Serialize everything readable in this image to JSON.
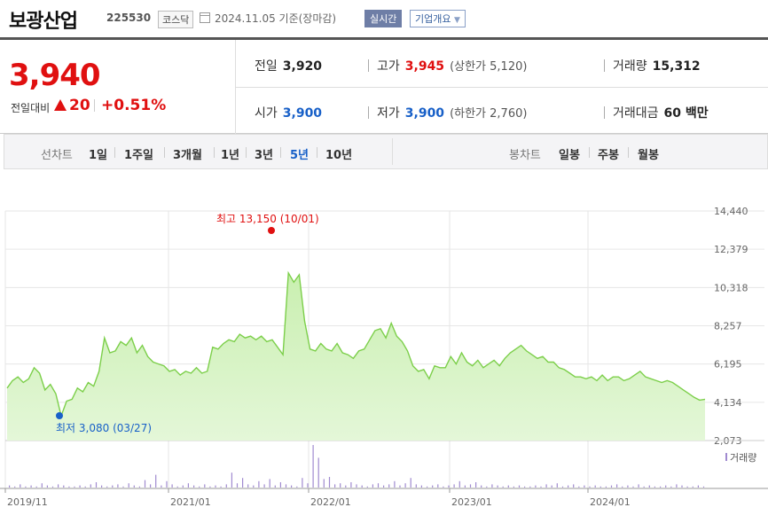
{
  "header": {
    "company": "보광산업",
    "code": "225530",
    "market": "코스닥",
    "date": "2024.11.05",
    "basis": "기준(장마감)",
    "realtime_label": "실시간",
    "overview_label": "기업개요"
  },
  "price": {
    "current": "3,940",
    "change_label": "전일대비",
    "change": "20",
    "change_pct": "+0.51%"
  },
  "stats": {
    "prev_close_label": "전일",
    "prev_close": "3,920",
    "high_label": "고가",
    "high": "3,945",
    "upper_limit": "(상한가 5,120)",
    "volume_label": "거래량",
    "volume": "15,312",
    "open_label": "시가",
    "open": "3,900",
    "low_label": "저가",
    "low": "3,900",
    "lower_limit": "(하한가 2,760)",
    "amount_label": "거래대금",
    "amount": "60 백만"
  },
  "line_chart_tabs": {
    "label": "선차트",
    "items": [
      "1일",
      "1주일",
      "3개월",
      "1년",
      "3년",
      "5년",
      "10년"
    ],
    "active": "5년"
  },
  "candle_chart_tabs": {
    "label": "봉차트",
    "items": [
      "일봉",
      "주봉",
      "월봉"
    ]
  },
  "colors": {
    "up": "#e01010",
    "down": "#1860c8",
    "line": "#7ccf4a",
    "fill": "#e4f7d8",
    "volume": "#a08ad0"
  },
  "chart_data": {
    "type": "area",
    "y_ticks": [
      "14,440",
      "12,379",
      "10,318",
      "8,257",
      "6,195",
      "4,134",
      "2,073"
    ],
    "ylim": [
      2073,
      14440
    ],
    "x_ticks": [
      "2019/11",
      "2021/01",
      "2022/01",
      "2023/01",
      "2024/01"
    ],
    "max_label": "최고 13,150 (10/01)",
    "min_label": "최저 3,080 (03/27)",
    "volume_legend": "거래량",
    "series": [
      {
        "values": [
          4900,
          5300,
          5500,
          5200,
          5400,
          6000,
          5700,
          4800,
          5100,
          4600,
          3400,
          4200,
          4300,
          4900,
          4700,
          5200,
          5000,
          5800,
          7600,
          6800,
          6900,
          7400,
          7200,
          7600,
          6800,
          7200,
          6600,
          6300,
          6200,
          6100,
          5800,
          5900,
          5600,
          5800,
          5700,
          6000,
          5700,
          5800,
          7100,
          7000,
          7300,
          7500,
          7400,
          7800,
          7600,
          7700,
          7500,
          7700,
          7400,
          7500,
          7100,
          6700,
          11100,
          10600,
          11000,
          8500,
          7000,
          6900,
          7300,
          7000,
          6900,
          7300,
          6800,
          6700,
          6500,
          6900,
          7000,
          7500,
          8000,
          8100,
          7600,
          8400,
          7700,
          7400,
          6900,
          6100,
          5800,
          5900,
          5400,
          6100,
          6000,
          6000,
          6600,
          6200,
          6800,
          6300,
          6100,
          6400,
          6000,
          6200,
          6400,
          6100,
          6500,
          6800,
          7000,
          7200,
          6900,
          6700,
          6500,
          6600,
          6300,
          6300,
          6000,
          5900,
          5700,
          5500,
          5500,
          5400,
          5500,
          5300,
          5600,
          5300,
          5500,
          5500,
          5300,
          5400,
          5600,
          5800,
          5500,
          5400,
          5300,
          5200,
          5300,
          5200,
          5000,
          4800,
          4600,
          4400,
          4250,
          4300
        ]
      }
    ]
  }
}
